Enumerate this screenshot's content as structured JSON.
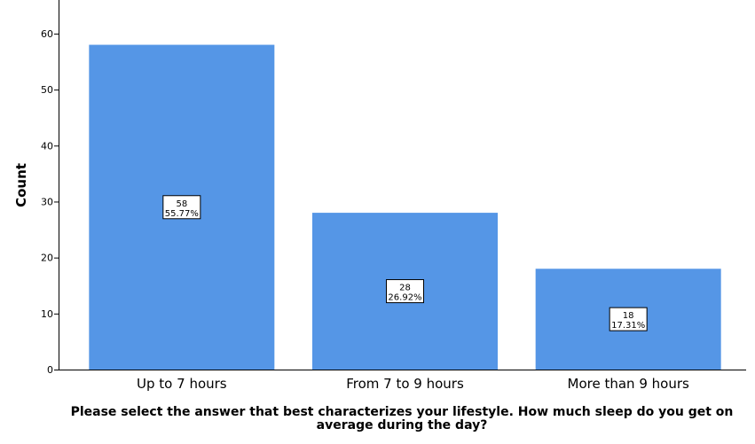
{
  "chart_data": {
    "type": "bar",
    "categories": [
      "Up to 7 hours",
      "From 7 to 9 hours",
      "More than 9 hours"
    ],
    "values": [
      58,
      28,
      18
    ],
    "percent_labels": [
      "55.77%",
      "26.92%",
      "17.31%"
    ],
    "count_labels": [
      "58",
      "28",
      "18"
    ],
    "ylabel": "Count",
    "xlabel_lines": [
      "Please select the answer that best characterizes your lifestyle. How much sleep do you get on",
      "average during the day?"
    ],
    "ylim": [
      0,
      66
    ],
    "yticks": [
      0,
      10,
      20,
      30,
      40,
      50,
      60
    ],
    "bar_color": "#5596e6",
    "grid": false
  }
}
